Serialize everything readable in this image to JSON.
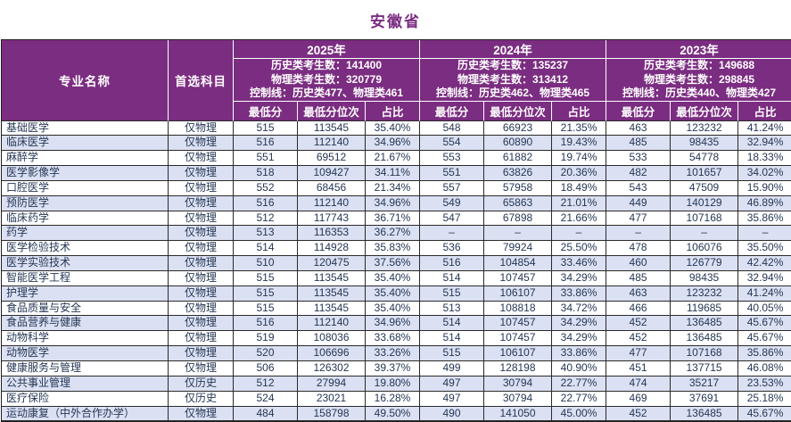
{
  "page_title": "安徽省",
  "colors": {
    "title_color": "#7b2d81",
    "header_bg": "#7b2d81",
    "header_text": "#ffffff",
    "stripe_bg": "#dbe0f3",
    "row_bg": "#ffffff",
    "border_dark": "#2a2a2a",
    "data_text": "#253754"
  },
  "table": {
    "col_headers": {
      "major": "专业名称",
      "subject": "首选科目",
      "sub_cols": [
        "最低分",
        "最低分位次",
        "占比"
      ]
    },
    "years": [
      {
        "label": "2025年",
        "stats": [
          "历史类考生数：141400",
          "物理类考生数：320779",
          "控制线：历史类477、物理类461"
        ]
      },
      {
        "label": "2024年",
        "stats": [
          "历史类考生数：135237",
          "物理类考生数：313412",
          "控制线：历史类462、物理类465"
        ]
      },
      {
        "label": "2023年",
        "stats": [
          "历史类考生数：149688",
          "物理类考生数：298845",
          "控制线：历史类440、物理类427"
        ]
      }
    ],
    "rows": [
      {
        "major": "基础医学",
        "subject": "仅物理",
        "values": [
          "515",
          "113545",
          "35.40%",
          "548",
          "66923",
          "21.35%",
          "463",
          "123232",
          "41.24%"
        ]
      },
      {
        "major": "临床医学",
        "subject": "仅物理",
        "values": [
          "516",
          "112140",
          "34.96%",
          "554",
          "60890",
          "19.43%",
          "485",
          "98435",
          "32.94%"
        ]
      },
      {
        "major": "麻醉学",
        "subject": "仅物理",
        "values": [
          "551",
          "69512",
          "21.67%",
          "553",
          "61882",
          "19.74%",
          "533",
          "54778",
          "18.33%"
        ]
      },
      {
        "major": "医学影像学",
        "subject": "仅物理",
        "values": [
          "518",
          "109427",
          "34.11%",
          "551",
          "63826",
          "20.36%",
          "482",
          "101657",
          "34.02%"
        ]
      },
      {
        "major": "口腔医学",
        "subject": "仅物理",
        "values": [
          "552",
          "68456",
          "21.34%",
          "557",
          "57958",
          "18.49%",
          "543",
          "47509",
          "15.90%"
        ]
      },
      {
        "major": "预防医学",
        "subject": "仅物理",
        "values": [
          "516",
          "112140",
          "34.96%",
          "549",
          "65863",
          "21.01%",
          "449",
          "140129",
          "46.89%"
        ]
      },
      {
        "major": "临床药学",
        "subject": "仅物理",
        "values": [
          "512",
          "117743",
          "36.71%",
          "547",
          "67898",
          "21.66%",
          "477",
          "107168",
          "35.86%"
        ]
      },
      {
        "major": "药学",
        "subject": "仅物理",
        "values": [
          "513",
          "116353",
          "36.27%",
          "–",
          "–",
          "–",
          "–",
          "–",
          "–"
        ]
      },
      {
        "major": "医学检验技术",
        "subject": "仅物理",
        "values": [
          "514",
          "114928",
          "35.83%",
          "536",
          "79924",
          "25.50%",
          "478",
          "106076",
          "35.50%"
        ]
      },
      {
        "major": "医学实验技术",
        "subject": "仅物理",
        "values": [
          "510",
          "120475",
          "37.56%",
          "516",
          "104854",
          "33.46%",
          "460",
          "126779",
          "42.42%"
        ]
      },
      {
        "major": "智能医学工程",
        "subject": "仅物理",
        "values": [
          "515",
          "113545",
          "35.40%",
          "514",
          "107457",
          "34.29%",
          "485",
          "98435",
          "32.94%"
        ]
      },
      {
        "major": "护理学",
        "subject": "仅物理",
        "values": [
          "515",
          "113545",
          "35.40%",
          "515",
          "106107",
          "33.86%",
          "463",
          "123232",
          "41.24%"
        ]
      },
      {
        "major": "食品质量与安全",
        "subject": "仅物理",
        "values": [
          "515",
          "113545",
          "35.40%",
          "513",
          "108818",
          "34.72%",
          "466",
          "119685",
          "40.05%"
        ]
      },
      {
        "major": "食品营养与健康",
        "subject": "仅物理",
        "values": [
          "516",
          "112140",
          "34.96%",
          "514",
          "107457",
          "34.29%",
          "452",
          "136485",
          "45.67%"
        ]
      },
      {
        "major": "动物科学",
        "subject": "仅物理",
        "values": [
          "519",
          "108036",
          "33.68%",
          "514",
          "107457",
          "34.29%",
          "452",
          "136485",
          "45.67%"
        ]
      },
      {
        "major": "动物医学",
        "subject": "仅物理",
        "values": [
          "520",
          "106696",
          "33.26%",
          "515",
          "106107",
          "33.86%",
          "477",
          "107168",
          "35.86%"
        ]
      },
      {
        "major": "健康服务与管理",
        "subject": "仅物理",
        "values": [
          "506",
          "126302",
          "39.37%",
          "499",
          "128198",
          "40.90%",
          "451",
          "137715",
          "46.08%"
        ]
      },
      {
        "major": "公共事业管理",
        "subject": "仅历史",
        "values": [
          "512",
          "27994",
          "19.80%",
          "497",
          "30794",
          "22.77%",
          "474",
          "35217",
          "23.53%"
        ]
      },
      {
        "major": "医疗保险",
        "subject": "仅历史",
        "values": [
          "524",
          "23021",
          "16.28%",
          "497",
          "30794",
          "22.77%",
          "469",
          "37691",
          "25.18%"
        ]
      },
      {
        "major": "运动康复（中外合作办学）",
        "subject": "仅物理",
        "values": [
          "484",
          "158798",
          "49.50%",
          "490",
          "141050",
          "45.00%",
          "452",
          "136485",
          "45.67%"
        ]
      }
    ]
  }
}
